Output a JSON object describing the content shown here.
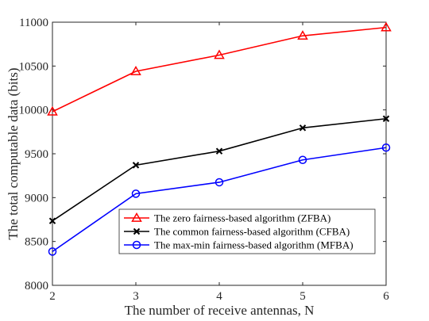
{
  "chart_data": {
    "type": "line",
    "xlabel": "The number of receive antennas, N",
    "ylabel": "The total computable data (bits)",
    "x": [
      2,
      3,
      4,
      5,
      6
    ],
    "xlim": [
      2,
      6
    ],
    "ylim": [
      8000,
      11000
    ],
    "x_ticks": [
      "2",
      "3",
      "4",
      "5",
      "6"
    ],
    "y_ticks": [
      "8000",
      "8500",
      "9000",
      "9500",
      "10000",
      "10500",
      "11000"
    ],
    "grid": false,
    "legend_position": "bottom-right",
    "series": [
      {
        "name": "The zero fairness-based algorithm (ZFBA)",
        "color": "#ff0000",
        "marker": "triangle",
        "values": [
          9980,
          10440,
          10625,
          10845,
          10940
        ]
      },
      {
        "name": "The common fairness-based algorithm (CFBA)",
        "color": "#000000",
        "marker": "x",
        "values": [
          8735,
          9370,
          9530,
          9795,
          9900
        ]
      },
      {
        "name": "The max-min fairness-based algorithm (MFBA)",
        "color": "#0000ff",
        "marker": "circle",
        "values": [
          8385,
          9045,
          9175,
          9430,
          9570
        ]
      }
    ]
  }
}
